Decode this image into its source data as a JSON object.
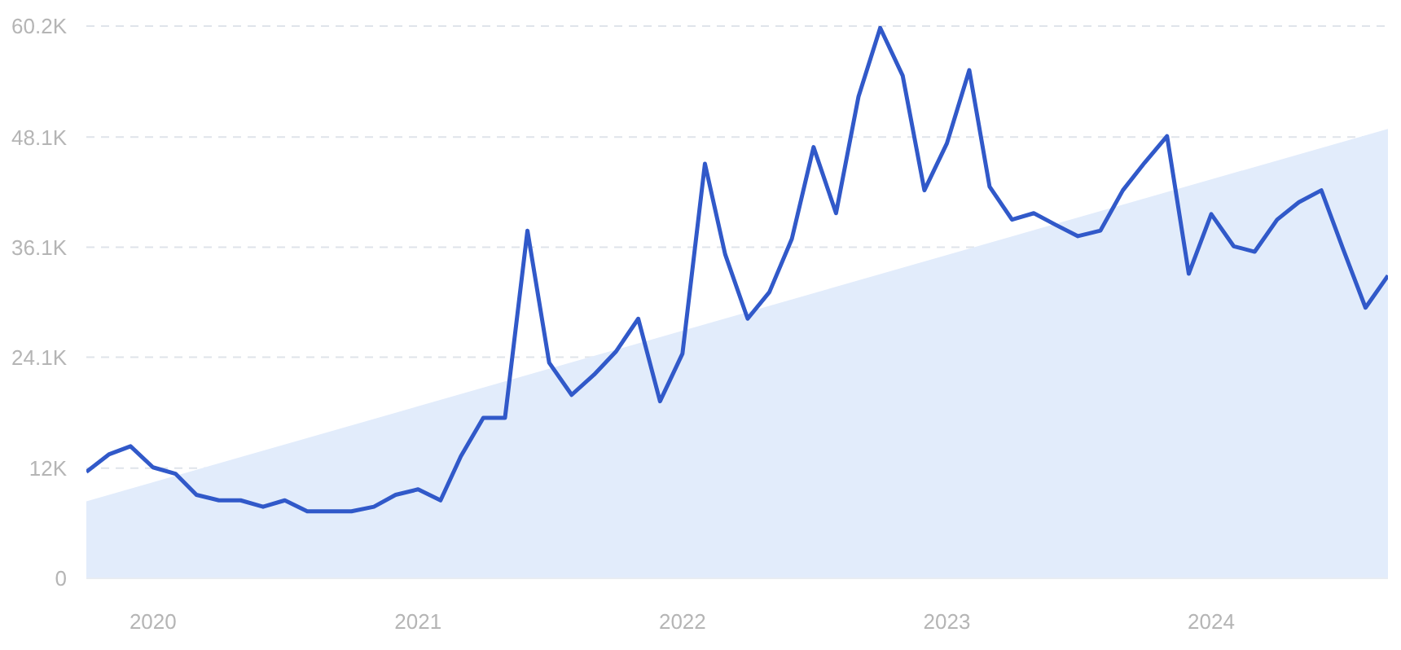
{
  "chart_data": {
    "type": "line",
    "x": [
      "2019-10",
      "2019-11",
      "2019-12",
      "2020-01",
      "2020-02",
      "2020-03",
      "2020-04",
      "2020-05",
      "2020-06",
      "2020-07",
      "2020-08",
      "2020-09",
      "2020-10",
      "2020-11",
      "2020-12",
      "2021-01",
      "2021-02",
      "2021-03",
      "2021-04",
      "2021-05",
      "2021-06",
      "2021-07",
      "2021-08",
      "2021-09",
      "2021-10",
      "2021-11",
      "2021-12",
      "2022-01",
      "2022-02",
      "2022-03",
      "2022-04",
      "2022-05",
      "2022-06",
      "2022-07",
      "2022-08",
      "2022-09",
      "2022-10",
      "2022-11",
      "2022-12",
      "2023-01",
      "2023-02",
      "2023-03",
      "2023-04",
      "2023-05",
      "2023-06",
      "2023-07",
      "2023-08",
      "2023-09",
      "2023-10",
      "2023-11",
      "2023-12",
      "2024-01",
      "2024-02",
      "2024-03",
      "2024-04",
      "2024-05",
      "2024-06",
      "2024-07",
      "2024-08",
      "2024-09"
    ],
    "series": [
      {
        "type": "area",
        "x": [
          "2019-10",
          "2024-09"
        ],
        "values": [
          8400,
          49000
        ],
        "color": "#e2ecfb"
      },
      {
        "color": "#3159c9",
        "values": [
          11600,
          13500,
          14400,
          12100,
          11400,
          9100,
          8500,
          8500,
          7800,
          8500,
          7300,
          7300,
          7300,
          7800,
          9100,
          9700,
          8500,
          13300,
          17500,
          17500,
          37900,
          23500,
          20000,
          22200,
          24700,
          28300,
          19300,
          24500,
          45200,
          35300,
          28300,
          31200,
          37000,
          47000,
          39800,
          52500,
          60000,
          54800,
          42300,
          47400,
          55400,
          42700,
          39100,
          39800,
          38500,
          37300,
          37900,
          42300,
          45300,
          48200,
          33200,
          39700,
          36200,
          35600,
          39100,
          41000,
          42300,
          35900,
          29500,
          33000
        ]
      }
    ],
    "xlim": [
      "2019-10",
      "2024-09"
    ],
    "xticks": [
      "2020",
      "2021",
      "2022",
      "2023",
      "2024"
    ],
    "ylim": [
      0,
      60200
    ],
    "yticks": [
      0,
      {
        "value": 12000,
        "label": "12K"
      },
      {
        "value": 24100,
        "label": "24.1K"
      },
      {
        "value": 36100,
        "label": "36.1K"
      },
      {
        "value": 48100,
        "label": "48.1K"
      },
      {
        "value": 60200,
        "label": "60.2K"
      }
    ],
    "grid": "y",
    "marker": "none"
  }
}
